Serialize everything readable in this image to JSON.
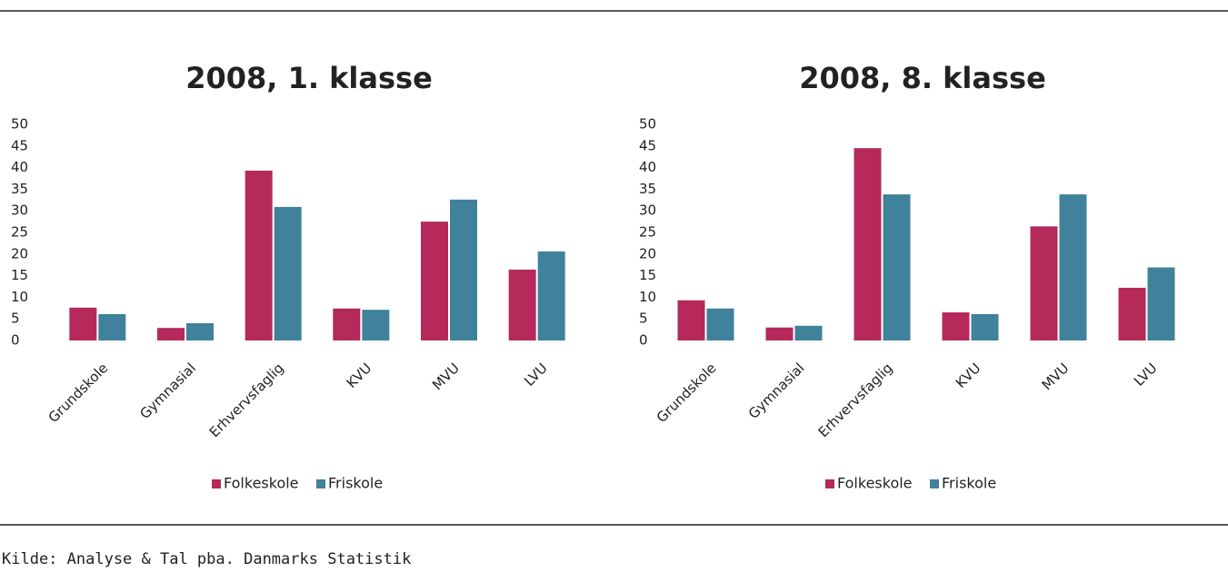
{
  "chart_data": [
    {
      "type": "bar",
      "title": "2008, 1. klasse",
      "categories": [
        "Grundskole",
        "Gymnasial",
        "Erhvervsfaglig",
        "KVU",
        "MVU",
        "LVU"
      ],
      "series": [
        {
          "name": "Folkeskole",
          "color": "#b5295b",
          "values": [
            7.6,
            2.9,
            39.3,
            7.4,
            27.5,
            16.4
          ]
        },
        {
          "name": "Friskole",
          "color": "#40819b",
          "values": [
            6.1,
            4.0,
            30.9,
            7.1,
            32.6,
            20.6
          ]
        }
      ],
      "ylim": [
        0,
        50
      ],
      "yticks": [
        0,
        5,
        10,
        15,
        20,
        25,
        30,
        35,
        40,
        45,
        50
      ],
      "grid": false,
      "legend": "bottom"
    },
    {
      "type": "bar",
      "title": "2008, 8. klasse",
      "categories": [
        "Grundskole",
        "Gymnasial",
        "Erhvervsfaglig",
        "KVU",
        "MVU",
        "LVU"
      ],
      "series": [
        {
          "name": "Folkeskole",
          "color": "#b5295b",
          "values": [
            9.3,
            3.0,
            44.5,
            6.5,
            26.4,
            12.2
          ]
        },
        {
          "name": "Friskole",
          "color": "#40819b",
          "values": [
            7.4,
            3.4,
            33.8,
            6.1,
            33.8,
            16.9
          ]
        }
      ],
      "ylim": [
        0,
        50
      ],
      "yticks": [
        0,
        5,
        10,
        15,
        20,
        25,
        30,
        35,
        40,
        45,
        50
      ],
      "grid": false,
      "legend": "bottom"
    }
  ],
  "source": "Kilde: Analyse & Tal pba. Danmarks Statistik"
}
